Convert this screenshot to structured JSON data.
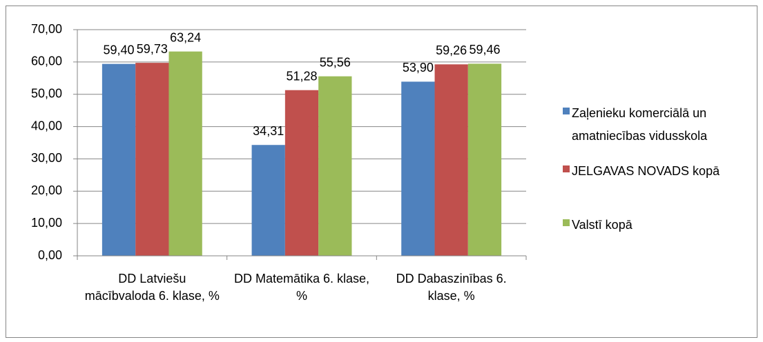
{
  "chart_data": {
    "type": "bar",
    "categories": [
      "DD Latviešu mācībvaloda 6. klase, %",
      "DD Matemātika 6. klase, %",
      "DD Dabaszinības 6. klase, %"
    ],
    "series": [
      {
        "name": "Zaļenieku komerciālā un amatniecības vidusskola",
        "color": "#4f81bd",
        "values": [
          59.4,
          34.31,
          53.9
        ],
        "value_labels": [
          "59,40",
          "34,31",
          "53,90"
        ]
      },
      {
        "name": "JELGAVAS NOVADS kopā",
        "color": "#c0504d",
        "values": [
          59.73,
          51.28,
          59.26
        ],
        "value_labels": [
          "59,73",
          "51,28",
          "59,26"
        ]
      },
      {
        "name": "Valstī kopā",
        "color": "#9bbb59",
        "values": [
          63.24,
          55.56,
          59.46
        ],
        "value_labels": [
          "63,24",
          "55,56",
          "59,46"
        ]
      }
    ],
    "ylim": [
      0,
      70
    ],
    "yticks": [
      {
        "value": 0,
        "label": "0,00"
      },
      {
        "value": 10,
        "label": "10,00"
      },
      {
        "value": 20,
        "label": "20,00"
      },
      {
        "value": 30,
        "label": "30,00"
      },
      {
        "value": 40,
        "label": "40,00"
      },
      {
        "value": 50,
        "label": "50,00"
      },
      {
        "value": 60,
        "label": "60,00"
      },
      {
        "value": 70,
        "label": "70,00"
      }
    ],
    "grid": true,
    "legend": "right"
  }
}
